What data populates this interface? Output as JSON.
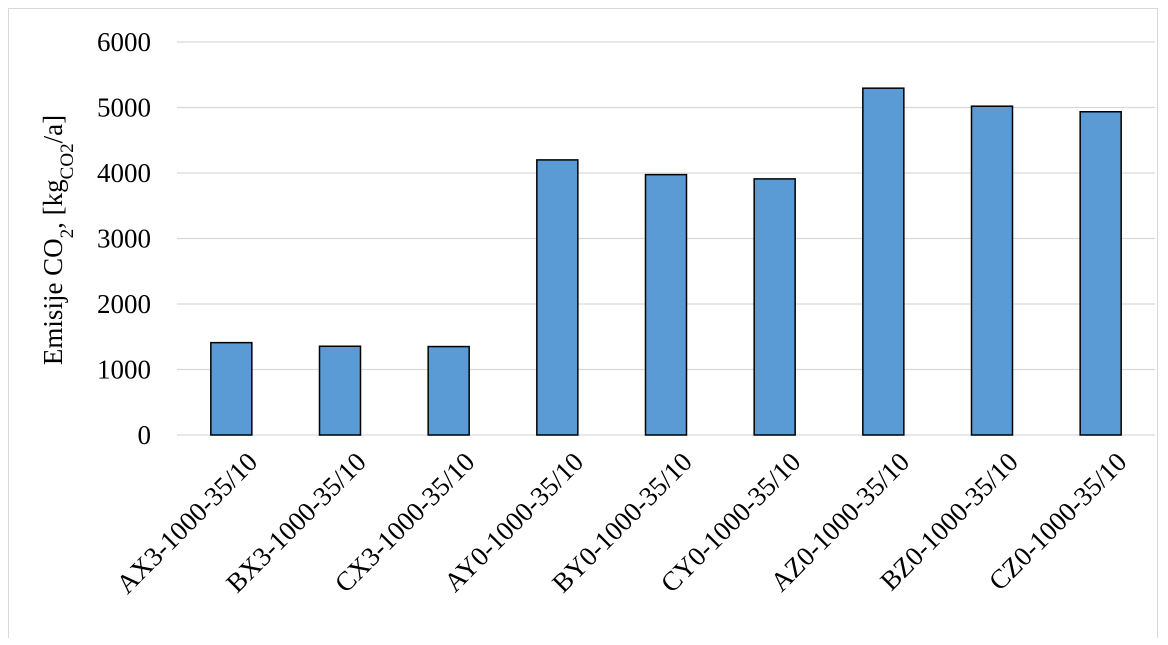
{
  "chart_data": {
    "type": "bar",
    "categories": [
      "AX3-1000-35/10",
      "BX3-1000-35/10",
      "CX3-1000-35/10",
      "AY0-1000-35/10",
      "BY0-1000-35/10",
      "CY0-1000-35/10",
      "AZ0-1000-35/10",
      "BZ0-1000-35/10",
      "CZ0-1000-35/10"
    ],
    "values": [
      1410,
      1355,
      1350,
      4200,
      3975,
      3910,
      5295,
      5020,
      4935
    ],
    "title": "",
    "xlabel": "",
    "ylabel": {
      "prefix": "Emisije CO",
      "sub1": "2",
      "mid": ", [kg",
      "sub2": "CO2",
      "suffix": "/a]"
    },
    "ylim": [
      0,
      6000
    ],
    "yticks": [
      0,
      1000,
      2000,
      3000,
      4000,
      5000,
      6000
    ],
    "grid": true,
    "legend": "none",
    "colors": {
      "bar_fill": "#5b9bd5",
      "bar_stroke": "#000000",
      "grid": "#d9d9d9"
    }
  }
}
